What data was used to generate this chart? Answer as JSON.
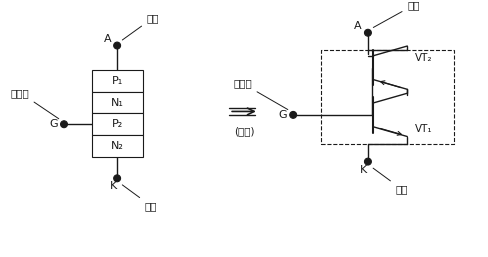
{
  "bg_color": "#ffffff",
  "text_color": "#1a1a1a",
  "line_color": "#1a1a1a",
  "fig_width": 4.88,
  "fig_height": 2.57,
  "dpi": 100,
  "layers_top_to_bottom": [
    "P₁",
    "N₁",
    "P₂",
    "N₂"
  ],
  "arrow_sub_label": "(等效)",
  "label_A_left": "A",
  "label_K_left": "K",
  "label_yang_left_top": "阳极",
  "label_yin_left_bot": "阴极",
  "label_kong_left": "控制极",
  "label_G_left": "G",
  "label_A_right": "A",
  "label_K_right": "K",
  "label_yang_right_top": "阳极",
  "label_yin_right_bot": "阴极",
  "label_kong_right": "控制极",
  "label_G_right": "G",
  "label_VT1": "VT₁",
  "label_VT2": "VT₂"
}
